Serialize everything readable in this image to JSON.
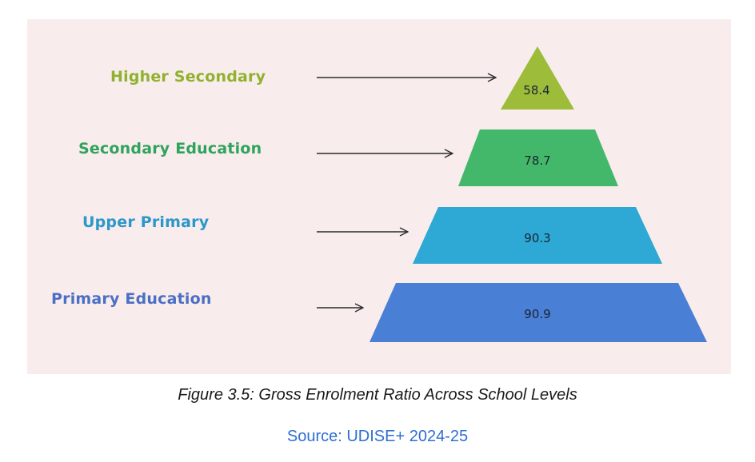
{
  "figure": {
    "caption": "Figure 3.5: Gross Enrolment Ratio Across School Levels",
    "source": "Source: UDISE+ 2024-25",
    "source_color": "#2f6fd1"
  },
  "pyramid": {
    "tiers": [
      {
        "label": "Higher Secondary",
        "value": "58.4",
        "fill": "#9cbc3a",
        "label_color": "#8fb22e"
      },
      {
        "label": "Secondary Education",
        "value": "78.7",
        "fill": "#44b86a",
        "label_color": "#2ea35c"
      },
      {
        "label": "Upper Primary",
        "value": "90.3",
        "fill": "#2ea8d4",
        "label_color": "#2b98c9"
      },
      {
        "label": "Primary Education",
        "value": "90.9",
        "fill": "#4a7fd6",
        "label_color": "#4a6fc4"
      }
    ]
  }
}
